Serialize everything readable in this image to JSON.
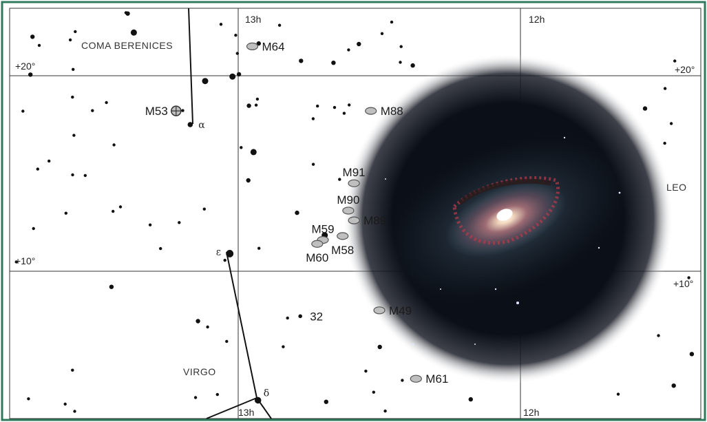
{
  "constellations": [
    {
      "name": "COMA BERENICES",
      "x": 12.9,
      "y": 18
    },
    {
      "name": "LEO",
      "x": 11.6,
      "y": 13.5
    },
    {
      "name": "VIRGO",
      "x": 13.3,
      "y": 2.8
    }
  ],
  "ra_labels": [
    {
      "text": "13h",
      "x": 13.0,
      "y": 21,
      "row": "top"
    },
    {
      "text": "12h",
      "x": 12.0,
      "y": 21,
      "row": "top"
    },
    {
      "text": "13h",
      "x": 13.0,
      "y": 0,
      "row": "bottom"
    },
    {
      "text": "12h",
      "x": 12.0,
      "y": 0,
      "row": "bottom"
    }
  ],
  "dec_labels": [
    {
      "text": "+20°",
      "side": "left",
      "dec": 20
    },
    {
      "text": "+20°",
      "side": "right",
      "dec": 20
    },
    {
      "text": "+10°",
      "side": "left",
      "dec": 10
    },
    {
      "text": "+10°",
      "side": "right",
      "dec": 10
    }
  ],
  "deep_sky": [
    {
      "name": "M64",
      "ra": 12.95,
      "dec": 21.5,
      "type": "galaxy",
      "label_side": "right"
    },
    {
      "name": "M53",
      "ra": 13.22,
      "dec": 18.2,
      "type": "cluster",
      "label_side": "left"
    },
    {
      "name": "M88",
      "ra": 12.53,
      "dec": 18.2,
      "type": "galaxy",
      "label_side": "right"
    },
    {
      "name": "M91",
      "ra": 12.59,
      "dec": 14.5,
      "type": "galaxy",
      "label_side": "top"
    },
    {
      "name": "M90",
      "ra": 12.61,
      "dec": 13.1,
      "type": "galaxy",
      "label_side": "top"
    },
    {
      "name": "M89",
      "ra": 12.59,
      "dec": 12.6,
      "type": "galaxy",
      "label_side": "right"
    },
    {
      "name": "M59",
      "ra": 12.7,
      "dec": 11.6,
      "type": "galaxy",
      "label_side": "top"
    },
    {
      "name": "M60",
      "ra": 12.72,
      "dec": 11.4,
      "type": "galaxy",
      "label_side": "bottom"
    },
    {
      "name": "M58",
      "ra": 12.63,
      "dec": 11.8,
      "type": "galaxy",
      "label_side": "bottom"
    },
    {
      "name": "M49",
      "ra": 12.5,
      "dec": 8.0,
      "type": "galaxy",
      "label_side": "right"
    },
    {
      "name": "M61",
      "ra": 12.37,
      "dec": 4.5,
      "type": "galaxy",
      "label_side": "right"
    }
  ],
  "named_stars": [
    {
      "name": "α",
      "ra": 13.17,
      "dec": 17.5,
      "mag": 4.3
    },
    {
      "name": "ε",
      "ra": 13.03,
      "dec": 10.9,
      "mag": 2.8
    },
    {
      "name": "δ",
      "ra": 12.93,
      "dec": 3.4,
      "mag": 3.4
    },
    {
      "name": "32",
      "ra": 12.78,
      "dec": 7.7,
      "mag": 5.2
    }
  ],
  "background_stars_count": 94,
  "colors": {
    "frame": "#2f7a5c",
    "grid": "#333333",
    "galaxy_fill": "#bfbfbf",
    "galaxy_stroke": "#555555",
    "star": "#111111"
  }
}
